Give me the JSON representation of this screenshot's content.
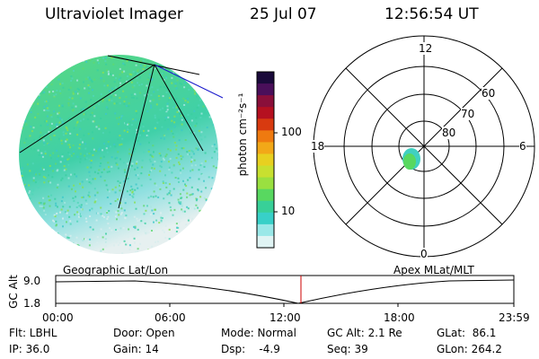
{
  "header": {
    "title": "Ultraviolet Imager",
    "date": "25 Jul 07",
    "time": "12:56:54 UT"
  },
  "colorbar": {
    "label": "photon cm⁻²s⁻¹",
    "ticks": [
      "100",
      "10"
    ],
    "colors": [
      "#1a0a3a",
      "#4a0f5a",
      "#8a0f3a",
      "#b51020",
      "#d83a10",
      "#ef7a10",
      "#f2a818",
      "#e8d020",
      "#c8e030",
      "#9ae040",
      "#58d860",
      "#38d098",
      "#38d0c8",
      "#9ae8e8",
      "#e0f4f4"
    ]
  },
  "polar": {
    "mlt_labels": {
      "top": "12",
      "bottom": "0",
      "left": "18",
      "right": "6"
    },
    "lat_labels": [
      "60",
      "70",
      "80"
    ]
  },
  "timeline": {
    "left_label": "Geographic Lat/Lon",
    "right_label": "Apex MLat/MLT",
    "y_axis_label": "GC Alt",
    "y_ticks": [
      "9.0",
      "1.8"
    ],
    "x_ticks": [
      "00:00",
      "06:00",
      "12:00",
      "18:00",
      "23:59"
    ],
    "marker_color": "#cc0000"
  },
  "footer": {
    "row1": [
      "Flt: LBHL",
      "Door: Open",
      "Mode: Normal",
      "GC Alt: 2.1 Re",
      "GLat:  86.1"
    ],
    "row2": [
      "IP: 36.0",
      "Gain: 14",
      "Dsp:    -4.9",
      "Seq: 39",
      "GLon: 264.2"
    ]
  }
}
